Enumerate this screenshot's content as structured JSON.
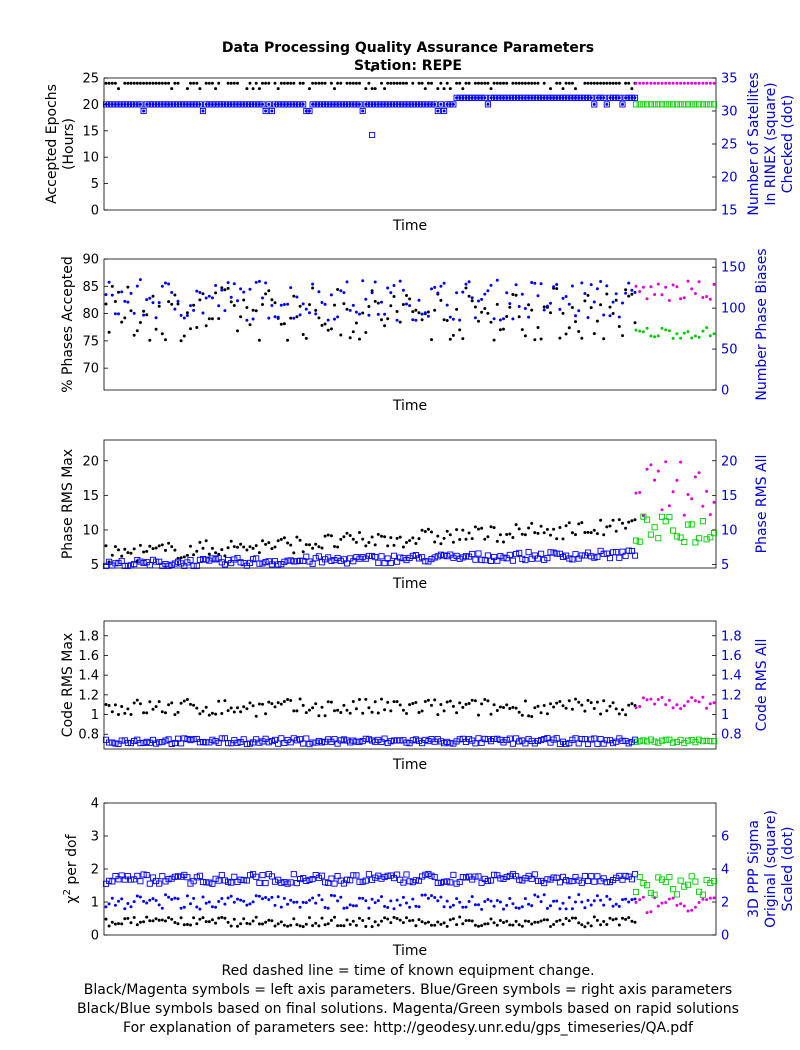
{
  "title_line1": "Data Processing Quality Assurance Parameters",
  "title_line2": "Station: REPE",
  "xlabel": "Time",
  "colors": {
    "final_left": "#000000",
    "final_right": "#0000ff",
    "rapid_left": "#e000e0",
    "rapid_right": "#00cc00",
    "right_axis_text": "#0000dd"
  },
  "footer": [
    "Red dashed line = time of known equipment change.",
    "Black/Magenta symbols = left axis parameters. Blue/Green symbols = right axis parameters",
    "Black/Blue symbols based on final solutions.  Magenta/Green symbols based on rapid solutions",
    "For explanation of parameters see: http://geodesy.unr.edu/gps_timeseries/QA.pdf"
  ],
  "chart_data": [
    {
      "type": "scatter",
      "ylabel_left": [
        "Accepted Epochs",
        "(Hours)"
      ],
      "ylabel_right": [
        "Number of Satellites",
        "In RINEX (square)",
        "Checked (dot)"
      ],
      "ylim_left": [
        0,
        25
      ],
      "ylim_right": [
        15,
        35
      ],
      "yticks_left": [
        "0",
        "5",
        "10",
        "15",
        "20",
        "25"
      ],
      "yticks_right": [
        "15",
        "20",
        "25",
        "30",
        "35"
      ],
      "left_typical": 24,
      "right_square_typical": 31,
      "right_dot_typical": 31
    },
    {
      "type": "scatter",
      "ylabel_left": [
        "% Phases Accepted"
      ],
      "ylabel_right": [
        "Number Phase Biases"
      ],
      "ylim_left": [
        66,
        90
      ],
      "ylim_right": [
        0,
        160
      ],
      "yticks_left": [
        "70",
        "75",
        "80",
        "85",
        "90"
      ],
      "yticks_right": [
        "0",
        "50",
        "100",
        "150"
      ],
      "left_typical": 80,
      "right_typical": 110,
      "rapid_left_typical": 84,
      "rapid_right_typical": 70
    },
    {
      "type": "scatter",
      "ylabel_left": [
        "Phase RMS Max"
      ],
      "ylabel_right": [
        "Phase RMS All"
      ],
      "ylim_left": [
        4.5,
        23
      ],
      "ylim_right": [
        4.5,
        23
      ],
      "yticks_left": [
        "5",
        "10",
        "15",
        "20"
      ],
      "yticks_right": [
        "5",
        "10",
        "15",
        "20"
      ],
      "left_start": 6,
      "left_end": 10,
      "right_start": 5,
      "right_end": 6.5
    },
    {
      "type": "scatter",
      "ylabel_left": [
        "Code RMS Max"
      ],
      "ylabel_right": [
        "Code RMS All"
      ],
      "ylim_left": [
        0.65,
        1.95
      ],
      "ylim_right": [
        0.65,
        1.95
      ],
      "yticks_left": [
        "0.8",
        "1",
        "1.2",
        "1.4",
        "1.6",
        "1.8"
      ],
      "yticks_right": [
        "0.8",
        "1",
        "1.2",
        "1.4",
        "1.6",
        "1.8"
      ],
      "left_typical": 1.07,
      "right_typical": 0.7
    },
    {
      "type": "scatter",
      "ylabel_left": [
        "χ",
        "2",
        " per dof"
      ],
      "ylabel_right": [
        "3D PPP Sigma",
        "Original (square)",
        "Scaled (dot)"
      ],
      "ylim_left": [
        0,
        4
      ],
      "ylim_right": [
        0,
        8
      ],
      "yticks_left": [
        "0",
        "1",
        "2",
        "3",
        "4"
      ],
      "yticks_right": [
        "0",
        "2",
        "4",
        "6"
      ],
      "left_typical": 0.4,
      "right_square_typical": 3.4,
      "right_dot_typical": 2.0
    }
  ]
}
